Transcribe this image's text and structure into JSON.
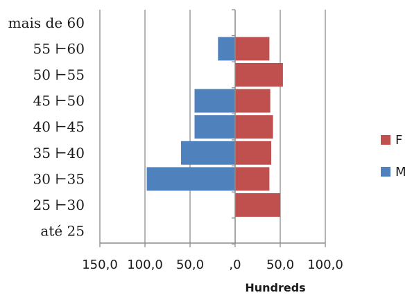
{
  "chart_data": {
    "type": "bar",
    "orientation": "horizontal",
    "stacked": true,
    "categories": [
      "mais de 60",
      "55 ⊢60",
      "50 ⊢55",
      "45 ⊢50",
      "40 ⊢45",
      "35 ⊢40",
      "30 ⊢35",
      "25 ⊢30",
      "até 25"
    ],
    "series": [
      {
        "name": "F",
        "color": "#c0504d",
        "values": [
          0,
          38,
          53,
          39,
          42,
          40,
          38,
          50,
          0
        ]
      },
      {
        "name": "M",
        "color": "#4f81bd",
        "values": [
          0,
          -19,
          0,
          -45,
          -45,
          -60,
          -98,
          0,
          0
        ]
      }
    ],
    "xlim": [
      -150,
      100
    ],
    "xticks": [
      -150,
      -100,
      -50,
      0,
      50,
      100
    ],
    "xtick_labels": [
      "150,0",
      "100,0",
      "50,0",
      ",0",
      "50,0",
      "100,0"
    ],
    "xlabel": "Hundreds",
    "ylabel": "",
    "grid": "vertical",
    "legend_position": "right"
  }
}
